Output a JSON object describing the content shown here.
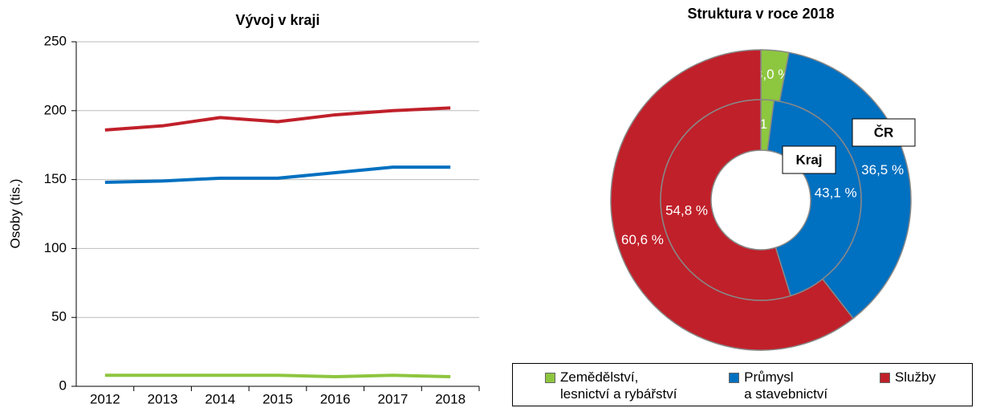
{
  "legend": [
    {
      "name": "Zemědělství,\nlesnictví a rybářství",
      "color": "#8dc63f"
    },
    {
      "name": "Průmysl\na stavebnictví",
      "color": "#0070c0"
    },
    {
      "name": "Služby",
      "color": "#c0202a"
    }
  ],
  "chart_data": [
    {
      "type": "line",
      "title": "Vývoj v kraji",
      "y_label": "Osoby (tis.)",
      "categories": [
        "2012",
        "2013",
        "2014",
        "2015",
        "2016",
        "2017",
        "2018"
      ],
      "series": [
        {
          "color": "#8dc63f",
          "values": [
            8,
            8,
            8,
            8,
            7,
            8,
            7
          ]
        },
        {
          "color": "#0070c0",
          "values": [
            148,
            149,
            151,
            151,
            155,
            159,
            159
          ]
        },
        {
          "color": "#c0202a",
          "values": [
            186,
            189,
            195,
            192,
            197,
            200,
            202
          ]
        }
      ],
      "ylim": [
        0,
        250
      ],
      "yticks": [
        0,
        50,
        100,
        150,
        200,
        250
      ],
      "grid": true
    },
    {
      "type": "donut",
      "title": "Struktura v roce 2018",
      "series": [
        {
          "name": "Kraj",
          "ring": "inner",
          "colors": [
            "#8dc63f",
            "#0070c0",
            "#c0202a"
          ],
          "values": [
            2.1,
            43.1,
            54.8
          ],
          "value_labels": [
            "2,1 %",
            "43,1 %",
            "54,8 %"
          ]
        },
        {
          "name": "ČR",
          "ring": "outer",
          "colors": [
            "#8dc63f",
            "#0070c0",
            "#c0202a"
          ],
          "values": [
            3.0,
            36.5,
            60.6
          ],
          "value_labels": [
            "3,0 %",
            "36,5 %",
            "60,6 %"
          ]
        }
      ]
    }
  ]
}
